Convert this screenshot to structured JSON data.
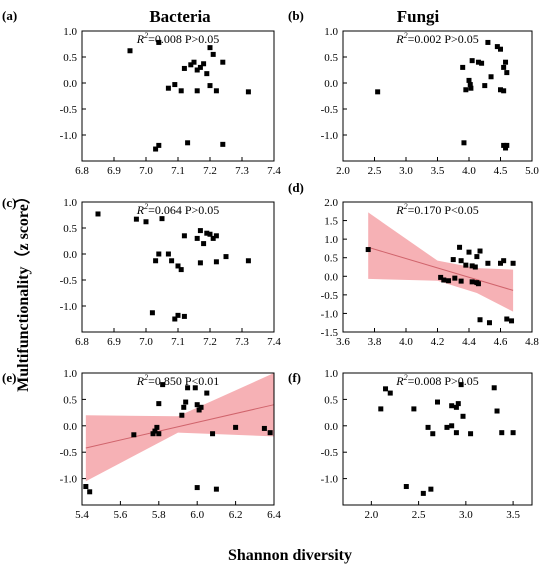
{
  "titles": {
    "left": "Bacteria",
    "right": "Fungi"
  },
  "ylabel": "Multifunctionality（z score）",
  "xlabel": "Shannon diversity",
  "panels": [
    {
      "label": "(a)",
      "stat": "R²=0.008 P>0.05",
      "r2": "0.008",
      "p": "P>0.05"
    },
    {
      "label": "(b)",
      "stat": "R²=0.002 P>0.05",
      "r2": "0.002",
      "p": "P>0.05"
    },
    {
      "label": "(c)",
      "stat": "R²=0.064 P>0.05",
      "r2": "0.064",
      "p": "P>0.05"
    },
    {
      "label": "(d)",
      "stat": "R²=0.170 P<0.05",
      "r2": "0.170",
      "p": "P<0.05"
    },
    {
      "label": "(e)",
      "stat": "R²=0.850 P<0.01",
      "r2": "0.850",
      "p": "P<0.01"
    },
    {
      "label": "(f)",
      "stat": "R²=0.008 P>0.05",
      "r2": "0.008",
      "p": "P>0.05"
    }
  ],
  "chart_data": [
    {
      "type": "scatter",
      "panel": "(a)",
      "xlim": [
        6.8,
        7.4
      ],
      "ylim": [
        -1.5,
        1.0
      ],
      "xticks": [
        "6.8",
        "6.9",
        "7.0",
        "7.1",
        "7.2",
        "7.3",
        "7.4"
      ],
      "yticks": [
        "1.0",
        "0.5",
        "0.0",
        "-0.5",
        "-1.0"
      ],
      "points": [
        [
          6.95,
          0.62
        ],
        [
          7.04,
          0.78
        ],
        [
          7.07,
          -0.1
        ],
        [
          7.09,
          -0.03
        ],
        [
          7.11,
          -0.15
        ],
        [
          7.12,
          0.28
        ],
        [
          7.14,
          0.35
        ],
        [
          7.15,
          0.4
        ],
        [
          7.16,
          0.25
        ],
        [
          7.17,
          0.3
        ],
        [
          7.18,
          0.37
        ],
        [
          7.19,
          0.18
        ],
        [
          7.2,
          0.68
        ],
        [
          7.21,
          0.55
        ],
        [
          7.2,
          -0.05
        ],
        [
          7.22,
          -0.15
        ],
        [
          7.24,
          0.4
        ],
        [
          7.32,
          -0.17
        ],
        [
          7.13,
          -1.15
        ],
        [
          7.24,
          -1.18
        ],
        [
          7.03,
          -1.27
        ],
        [
          7.04,
          -1.2
        ],
        [
          7.16,
          -0.15
        ]
      ],
      "fit": false
    },
    {
      "type": "scatter",
      "panel": "(b)",
      "xlim": [
        2.0,
        5.0
      ],
      "ylim": [
        -1.5,
        1.0
      ],
      "xticks": [
        "2.0",
        "2.5",
        "3.0",
        "3.5",
        "4.0",
        "4.5",
        "5.0"
      ],
      "yticks": [
        "1.0",
        "0.5",
        "0.0",
        "-0.5",
        "-1.0"
      ],
      "points": [
        [
          2.55,
          -0.17
        ],
        [
          3.9,
          0.3
        ],
        [
          3.95,
          -0.13
        ],
        [
          4.0,
          0.05
        ],
        [
          4.02,
          -0.03
        ],
        [
          4.03,
          -0.1
        ],
        [
          4.05,
          0.43
        ],
        [
          4.15,
          0.4
        ],
        [
          4.2,
          0.38
        ],
        [
          4.25,
          -0.05
        ],
        [
          4.3,
          0.78
        ],
        [
          4.35,
          0.12
        ],
        [
          4.45,
          0.7
        ],
        [
          4.5,
          -0.13
        ],
        [
          4.5,
          0.65
        ],
        [
          4.55,
          0.3
        ],
        [
          4.55,
          -0.15
        ],
        [
          4.58,
          0.4
        ],
        [
          4.6,
          0.2
        ],
        [
          4.55,
          -1.2
        ],
        [
          4.58,
          -1.25
        ],
        [
          4.6,
          -1.2
        ],
        [
          3.92,
          -1.15
        ]
      ],
      "fit": false
    },
    {
      "type": "scatter",
      "panel": "(c)",
      "xlim": [
        6.8,
        7.4
      ],
      "ylim": [
        -1.5,
        1.0
      ],
      "xticks": [
        "6.8",
        "6.9",
        "7.0",
        "7.1",
        "7.2",
        "7.3",
        "7.4"
      ],
      "yticks": [
        "1.0",
        "0.5",
        "0.0",
        "-0.5",
        "-1.0"
      ],
      "points": [
        [
          6.85,
          0.77
        ],
        [
          6.97,
          0.67
        ],
        [
          7.0,
          0.62
        ],
        [
          7.03,
          -0.13
        ],
        [
          7.04,
          0.0
        ],
        [
          7.05,
          0.68
        ],
        [
          7.07,
          0.0
        ],
        [
          7.08,
          -0.13
        ],
        [
          7.1,
          -0.23
        ],
        [
          7.11,
          -0.3
        ],
        [
          7.12,
          0.35
        ],
        [
          7.16,
          0.3
        ],
        [
          7.17,
          0.45
        ],
        [
          7.18,
          0.2
        ],
        [
          7.19,
          0.4
        ],
        [
          7.2,
          0.38
        ],
        [
          7.21,
          0.3
        ],
        [
          7.22,
          0.35
        ],
        [
          7.22,
          -0.15
        ],
        [
          7.25,
          -0.05
        ],
        [
          7.32,
          -0.13
        ],
        [
          7.02,
          -1.13
        ],
        [
          7.09,
          -1.25
        ],
        [
          7.1,
          -1.18
        ],
        [
          7.12,
          -1.2
        ],
        [
          7.17,
          -0.17
        ]
      ],
      "fit": false
    },
    {
      "type": "scatter",
      "panel": "(d)",
      "xlim": [
        3.6,
        4.8
      ],
      "ylim": [
        -1.5,
        2.0
      ],
      "xticks": [
        "3.6",
        "3.8",
        "4.0",
        "4.2",
        "4.4",
        "4.6",
        "4.8"
      ],
      "yticks": [
        "2.0",
        "1.5",
        "1.0",
        "0.5",
        "0.0",
        "-0.5",
        "-1.0",
        "-1.5"
      ],
      "points": [
        [
          3.76,
          0.72
        ],
        [
          4.22,
          -0.03
        ],
        [
          4.24,
          -0.1
        ],
        [
          4.27,
          -0.12
        ],
        [
          4.3,
          0.45
        ],
        [
          4.31,
          -0.05
        ],
        [
          4.34,
          0.78
        ],
        [
          4.35,
          0.42
        ],
        [
          4.38,
          0.3
        ],
        [
          4.4,
          0.65
        ],
        [
          4.42,
          0.28
        ],
        [
          4.42,
          -0.15
        ],
        [
          4.44,
          0.25
        ],
        [
          4.45,
          -0.17
        ],
        [
          4.45,
          0.53
        ],
        [
          4.47,
          0.68
        ],
        [
          4.46,
          -0.2
        ],
        [
          4.47,
          -1.17
        ],
        [
          4.52,
          0.35
        ],
        [
          4.53,
          -1.25
        ],
        [
          4.6,
          0.35
        ],
        [
          4.62,
          0.42
        ],
        [
          4.64,
          -1.15
        ],
        [
          4.67,
          -1.2
        ],
        [
          4.68,
          0.35
        ],
        [
          4.35,
          -0.13
        ]
      ],
      "fit": true,
      "fit_line": [
        [
          3.76,
          0.78
        ],
        [
          4.68,
          -0.38
        ]
      ],
      "ci_upper": [
        [
          3.76,
          1.72
        ],
        [
          4.2,
          0.42
        ],
        [
          4.45,
          0.22
        ],
        [
          4.68,
          0.18
        ]
      ],
      "ci_lower": [
        [
          3.76,
          -0.07
        ],
        [
          4.2,
          -0.12
        ],
        [
          4.45,
          -0.45
        ],
        [
          4.68,
          -0.95
        ]
      ]
    },
    {
      "type": "scatter",
      "panel": "(e)",
      "xlim": [
        5.4,
        6.4
      ],
      "ylim": [
        -1.5,
        1.0
      ],
      "xticks": [
        "5.4",
        "5.6",
        "5.8",
        "6.0",
        "6.2",
        "6.4"
      ],
      "yticks": [
        "1.0",
        "0.5",
        "0.0",
        "-0.5",
        "-1.0"
      ],
      "points": [
        [
          5.42,
          -1.15
        ],
        [
          5.44,
          -1.25
        ],
        [
          5.67,
          -0.17
        ],
        [
          5.77,
          -0.15
        ],
        [
          5.78,
          -0.1
        ],
        [
          5.79,
          -0.03
        ],
        [
          5.8,
          0.42
        ],
        [
          5.8,
          -0.15
        ],
        [
          5.82,
          0.78
        ],
        [
          5.92,
          0.2
        ],
        [
          5.93,
          0.35
        ],
        [
          5.94,
          0.45
        ],
        [
          5.95,
          0.72
        ],
        [
          5.99,
          0.72
        ],
        [
          6.0,
          -1.17
        ],
        [
          6.01,
          0.3
        ],
        [
          6.02,
          0.35
        ],
        [
          6.05,
          0.62
        ],
        [
          6.08,
          -0.15
        ],
        [
          6.1,
          -1.2
        ],
        [
          6.2,
          -0.03
        ],
        [
          6.35,
          -0.05
        ],
        [
          6.38,
          -0.13
        ],
        [
          6.0,
          0.4
        ]
      ],
      "fit": true,
      "fit_line": [
        [
          5.42,
          -0.42
        ],
        [
          6.4,
          0.4
        ]
      ],
      "ci_upper": [
        [
          5.42,
          0.2
        ],
        [
          5.9,
          0.18
        ],
        [
          6.4,
          1.0
        ]
      ],
      "ci_lower": [
        [
          5.42,
          -1.05
        ],
        [
          5.9,
          -0.13
        ],
        [
          6.4,
          -0.2
        ]
      ]
    },
    {
      "type": "scatter",
      "panel": "(f)",
      "xlim": [
        1.7,
        3.7
      ],
      "ylim": [
        -1.5,
        1.0
      ],
      "xticks": [
        "2.0",
        "2.5",
        "3.0",
        "3.5"
      ],
      "yticks": [
        "1.0",
        "0.5",
        "0.0",
        "-0.5",
        "-1.0"
      ],
      "points": [
        [
          2.1,
          0.32
        ],
        [
          2.15,
          0.7
        ],
        [
          2.2,
          0.62
        ],
        [
          2.45,
          0.32
        ],
        [
          2.55,
          -1.28
        ],
        [
          2.6,
          -0.03
        ],
        [
          2.65,
          -0.15
        ],
        [
          2.7,
          0.45
        ],
        [
          2.8,
          -0.03
        ],
        [
          2.85,
          0.38
        ],
        [
          2.9,
          -0.13
        ],
        [
          2.92,
          0.42
        ],
        [
          2.95,
          0.78
        ],
        [
          2.97,
          0.18
        ],
        [
          3.05,
          -0.15
        ],
        [
          3.3,
          0.72
        ],
        [
          3.33,
          0.28
        ],
        [
          3.38,
          -0.13
        ],
        [
          3.5,
          -0.13
        ],
        [
          2.37,
          -1.15
        ],
        [
          2.63,
          -1.2
        ],
        [
          2.9,
          0.35
        ],
        [
          2.85,
          0.0
        ]
      ],
      "fit": false
    }
  ]
}
